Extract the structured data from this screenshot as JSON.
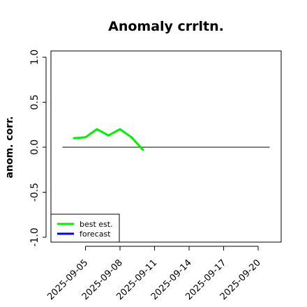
{
  "chart_data": {
    "type": "line",
    "title": "Anomaly crrltn.",
    "xlabel": "",
    "ylabel": "anom. corr.",
    "ylim": [
      -1.0,
      1.0
    ],
    "yticks": [
      "1.0",
      "0.5",
      "0.0",
      "-0.5",
      "-1.0"
    ],
    "ytick_values": [
      1.0,
      0.5,
      0.0,
      -0.5,
      -1.0
    ],
    "x_dates": [
      "2025-09-05",
      "2025-09-08",
      "2025-09-11",
      "2025-09-14",
      "2025-09-17",
      "2025-09-20"
    ],
    "xlim": [
      "2025-09-02",
      "2025-09-22"
    ],
    "highlighted_tick": "2025-09-11",
    "highlight_color": "#2e8b2e",
    "series": [
      {
        "name": "best est.",
        "color": "#00ee00",
        "x": [
          "2025-09-04",
          "2025-09-05",
          "2025-09-06",
          "2025-09-07",
          "2025-09-08",
          "2025-09-09",
          "2025-09-10"
        ],
        "values": [
          0.1,
          0.11,
          0.2,
          0.13,
          0.2,
          0.11,
          -0.03
        ]
      },
      {
        "name": "forecast",
        "color": "#0000ff",
        "x": [],
        "values": []
      }
    ],
    "reference_line": {
      "y": 0.0,
      "x_start": "2025-09-03",
      "x_end": "2025-09-21"
    },
    "grid": false,
    "legend_position": "bottom-left"
  }
}
